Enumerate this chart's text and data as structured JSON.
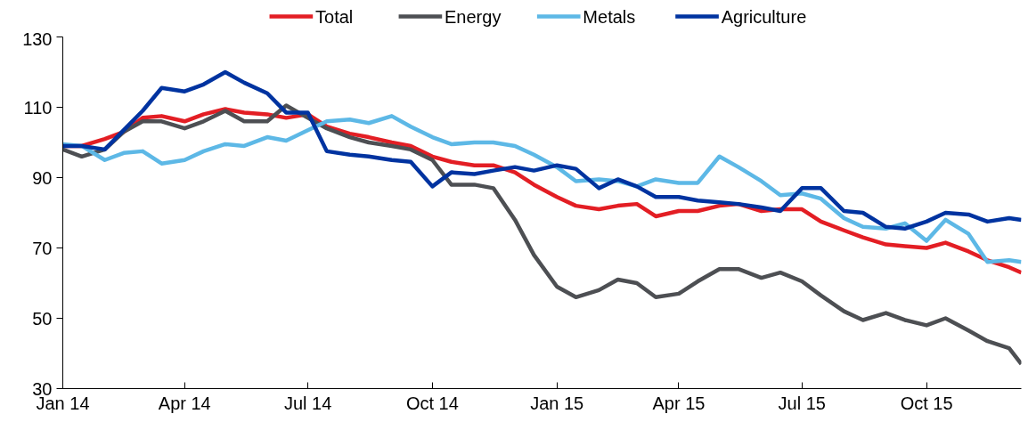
{
  "chart_data": {
    "type": "line",
    "x": [
      "2014-01-01",
      "2014-01-15",
      "2014-02-01",
      "2014-02-15",
      "2014-03-01",
      "2014-03-15",
      "2014-04-01",
      "2014-04-15",
      "2014-05-01",
      "2014-05-15",
      "2014-06-01",
      "2014-06-15",
      "2014-07-01",
      "2014-07-15",
      "2014-08-01",
      "2014-08-15",
      "2014-09-01",
      "2014-09-15",
      "2014-10-01",
      "2014-10-15",
      "2014-11-01",
      "2014-11-15",
      "2014-12-01",
      "2014-12-15",
      "2015-01-01",
      "2015-01-15",
      "2015-02-01",
      "2015-02-15",
      "2015-03-01",
      "2015-03-15",
      "2015-04-01",
      "2015-04-15",
      "2015-05-01",
      "2015-05-15",
      "2015-06-01",
      "2015-06-15",
      "2015-07-01",
      "2015-07-15",
      "2015-08-01",
      "2015-08-15",
      "2015-09-01",
      "2015-09-15",
      "2015-10-01",
      "2015-10-15",
      "2015-11-01",
      "2015-11-15",
      "2015-12-01",
      "2015-12-10"
    ],
    "series": [
      {
        "name": "Total",
        "color": "#e31e24",
        "values": [
          99,
          99,
          101,
          103,
          107,
          107.5,
          106,
          108,
          109.5,
          108.5,
          108,
          107,
          108,
          104.5,
          102.5,
          101.5,
          100,
          99,
          96,
          94.5,
          93.5,
          93.5,
          91.5,
          88,
          84.5,
          82,
          81,
          82,
          82.5,
          79,
          80.5,
          80.5,
          82,
          82.5,
          80.5,
          81,
          81,
          77.5,
          75,
          73,
          71,
          70.5,
          70,
          71.5,
          69,
          66.5,
          64.5,
          63
        ]
      },
      {
        "name": "Energy",
        "color": "#4d4f53",
        "values": [
          98,
          96,
          98,
          103,
          106,
          106,
          104,
          106,
          109,
          106,
          106,
          110.5,
          107,
          104,
          101.5,
          100,
          99,
          98,
          95,
          88,
          88,
          87,
          78,
          68,
          59,
          56,
          58,
          61,
          60,
          56,
          57,
          60.5,
          64,
          64,
          61.5,
          63,
          60.5,
          56.5,
          52,
          49.5,
          51.5,
          49.5,
          48,
          50,
          46.5,
          43.5,
          41.5,
          37
        ]
      },
      {
        "name": "Metals",
        "color": "#5db8e6",
        "values": [
          99.5,
          99,
          95,
          97,
          97.5,
          94,
          95,
          97.5,
          99.5,
          99,
          101.5,
          100.5,
          103.5,
          106,
          106.5,
          105.5,
          107.5,
          104.5,
          101.5,
          99.5,
          100,
          100,
          99,
          96.5,
          93,
          89,
          89.5,
          89,
          87.5,
          89.5,
          88.5,
          88.5,
          96,
          93,
          89,
          85,
          85.5,
          84,
          78.5,
          76,
          75.5,
          77,
          72,
          78,
          74,
          66,
          66.5,
          66
        ]
      },
      {
        "name": "Agriculture",
        "color": "#0033a0",
        "values": [
          99,
          99,
          98,
          103.5,
          109,
          115.5,
          114.5,
          116.5,
          120,
          117,
          114,
          108.5,
          108.5,
          97.5,
          96.5,
          96,
          95,
          94.5,
          87.5,
          91.5,
          91,
          92,
          93,
          92,
          93.5,
          92.5,
          87,
          89.5,
          87.5,
          84.5,
          84.5,
          83.5,
          83,
          82.5,
          81.5,
          80.5,
          87,
          87,
          80.5,
          80,
          76,
          75.5,
          77.5,
          80,
          79.5,
          77.5,
          78.5,
          78
        ]
      }
    ],
    "xlim": [
      "2014-01-01",
      "2015-12-10"
    ],
    "xticks": [
      {
        "value": "2014-01-01",
        "label": "Jan 14"
      },
      {
        "value": "2014-04-01",
        "label": "Apr 14"
      },
      {
        "value": "2014-07-01",
        "label": "Jul 14"
      },
      {
        "value": "2014-10-01",
        "label": "Oct 14"
      },
      {
        "value": "2015-01-01",
        "label": "Jan 15"
      },
      {
        "value": "2015-04-01",
        "label": "Apr 15"
      },
      {
        "value": "2015-07-01",
        "label": "Jul 15"
      },
      {
        "value": "2015-10-01",
        "label": "Oct 15"
      }
    ],
    "ylim": [
      30,
      130
    ],
    "yticks": [
      30,
      50,
      70,
      90,
      110,
      130
    ],
    "grid": false,
    "legend": "top",
    "marker": "none",
    "line_style": "solid"
  }
}
